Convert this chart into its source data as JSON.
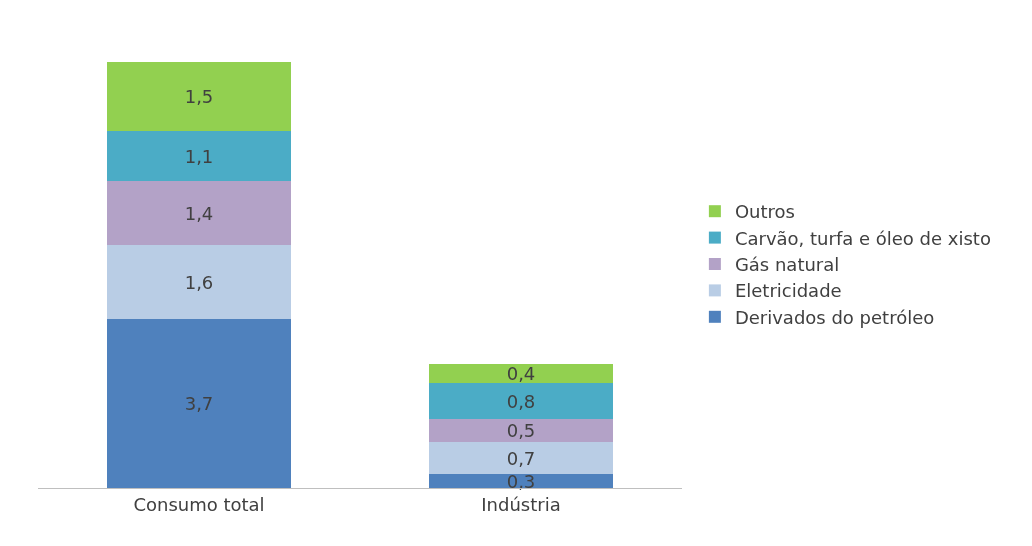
{
  "chart_data": {
    "type": "bar",
    "stacked": true,
    "categories": [
      "Consumo total",
      "Indústria"
    ],
    "series": [
      {
        "name": "Derivados do petróleo",
        "color": "#4f81bd",
        "values": [
          3.7,
          0.3
        ],
        "value_labels": [
          "3,7",
          "0,3"
        ]
      },
      {
        "name": "Eletricidade",
        "color": "#b9cde5",
        "values": [
          1.6,
          0.7
        ],
        "value_labels": [
          "1,6",
          "0,7"
        ]
      },
      {
        "name": "Gás natural",
        "color": "#b3a2c7",
        "values": [
          1.4,
          0.5
        ],
        "value_labels": [
          "1,4",
          "0,5"
        ]
      },
      {
        "name": "Carvão, turfa e óleo de xisto",
        "color": "#4bacc6",
        "values": [
          1.1,
          0.8
        ],
        "value_labels": [
          "1,1",
          "0,8"
        ]
      },
      {
        "name": "Outros",
        "color": "#92d050",
        "values": [
          1.5,
          0.4
        ],
        "value_labels": [
          "1,5",
          "0,4"
        ]
      }
    ],
    "legend": "right"
  }
}
